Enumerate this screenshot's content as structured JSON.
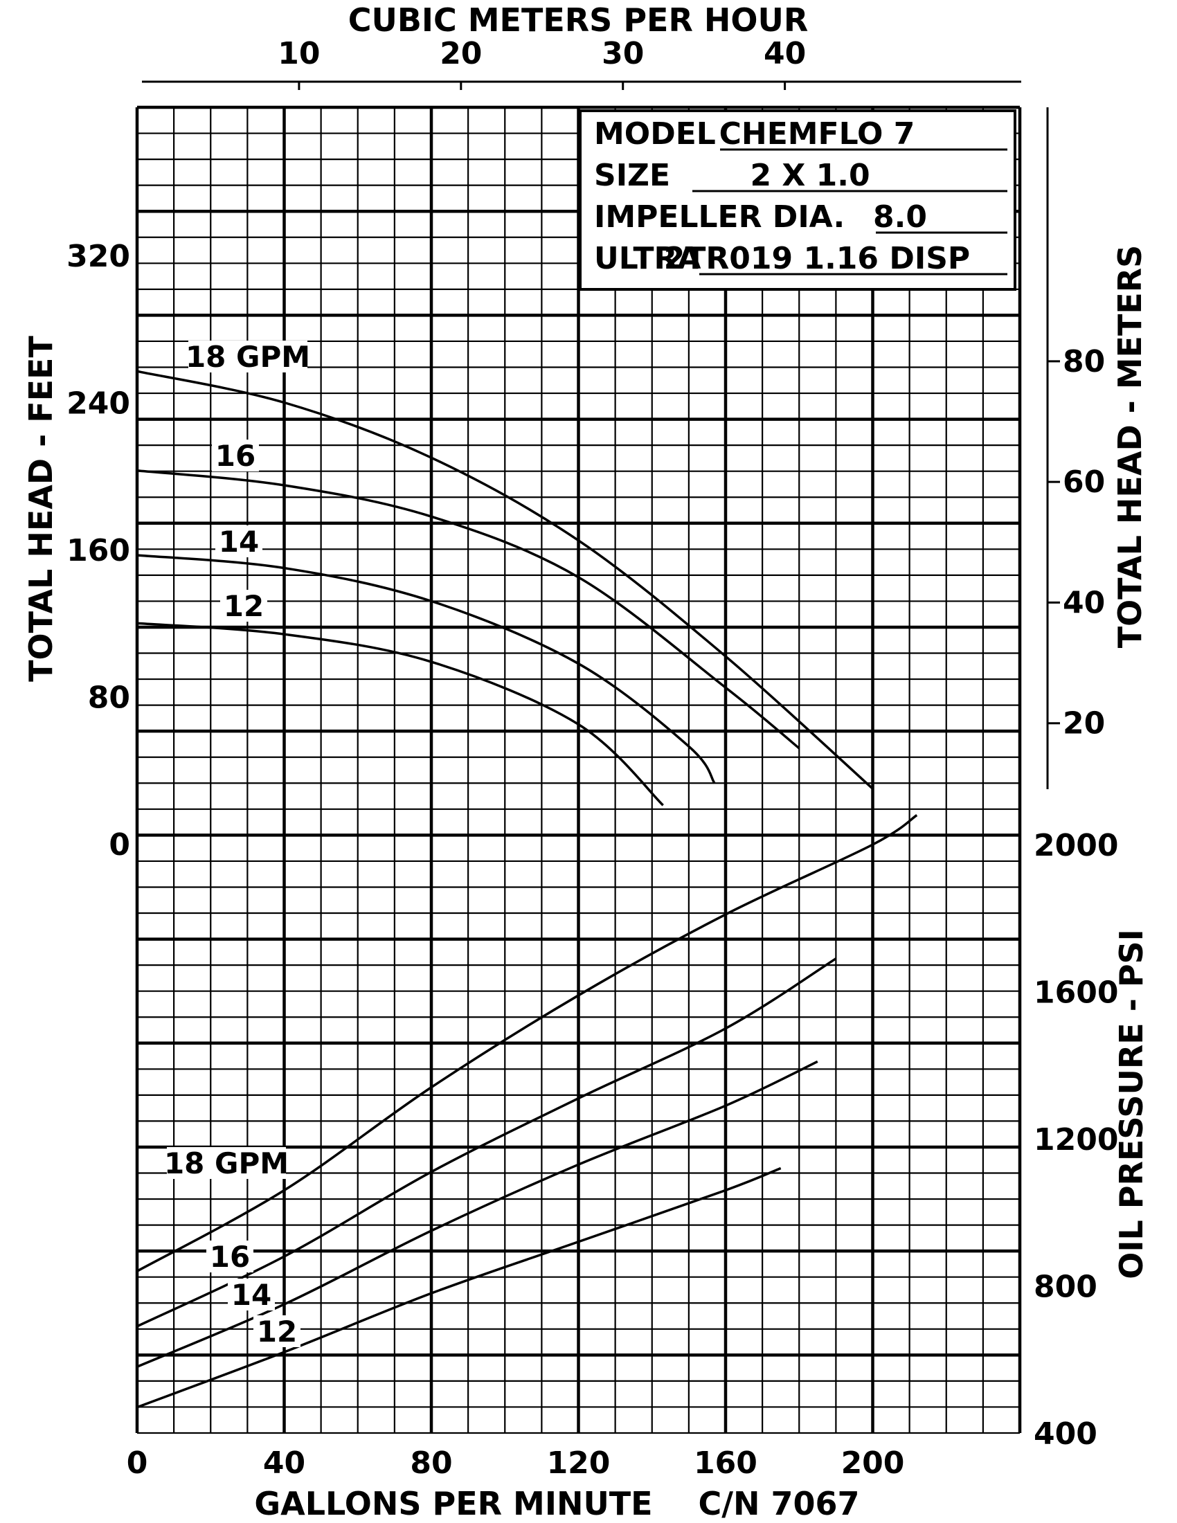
{
  "chart_data": {
    "type": "line",
    "top_axis": {
      "label": "CUBIC METERS PER HOUR",
      "ticks": [
        "10",
        "20",
        "30",
        "40"
      ],
      "values": [
        10,
        20,
        30,
        40
      ]
    },
    "x_axis": {
      "label": "GALLONS PER MINUTE",
      "ticks": [
        "0",
        "40",
        "80",
        "120",
        "160",
        "200"
      ],
      "values": [
        0,
        40,
        80,
        120,
        160,
        200
      ],
      "range": [
        0,
        240
      ]
    },
    "left_axis": {
      "label": "TOTAL HEAD - FEET",
      "ticks": [
        "0",
        "80",
        "160",
        "240",
        "320"
      ],
      "values": [
        0,
        80,
        160,
        240,
        320
      ]
    },
    "right_head_axis": {
      "label": "TOTAL HEAD - METERS",
      "ticks": [
        "20",
        "40",
        "60",
        "80"
      ],
      "values": [
        20,
        40,
        60,
        80
      ]
    },
    "right_oil_axis": {
      "label": "OIL PRESSURE - PSI",
      "ticks": [
        "400",
        "800",
        "1200",
        "1600",
        "2000"
      ],
      "values": [
        400,
        800,
        1200,
        1600,
        2000
      ],
      "range": [
        400,
        2000
      ]
    },
    "footer_code": "C/N 7067",
    "info_box": [
      {
        "key": "MODEL",
        "value": "CHEMFLO 7"
      },
      {
        "key": "SIZE",
        "value": "2 X 1.0"
      },
      {
        "key": "IMPELLER DIA.",
        "value": "8.0"
      },
      {
        "key": "ULTRA",
        "value": "2TR019 1.16 DISP"
      }
    ],
    "head_series": [
      {
        "name": "18 GPM",
        "x": [
          0,
          40,
          80,
          120,
          160,
          200
        ],
        "y": [
          257,
          240,
          210,
          165,
          102,
          30
        ]
      },
      {
        "name": "16",
        "x": [
          0,
          40,
          80,
          120,
          160,
          180
        ],
        "y": [
          203,
          195,
          178,
          145,
          85,
          52
        ]
      },
      {
        "name": "14",
        "x": [
          0,
          40,
          80,
          120,
          150,
          157
        ],
        "y": [
          157,
          150,
          132,
          98,
          53,
          33
        ]
      },
      {
        "name": "12",
        "x": [
          0,
          40,
          80,
          120,
          143
        ],
        "y": [
          120,
          114,
          99,
          65,
          21
        ]
      }
    ],
    "oil_series": [
      {
        "name": "18 GPM",
        "x": [
          0,
          40,
          80,
          120,
          160,
          200,
          212
        ],
        "y": [
          840,
          1060,
          1340,
          1590,
          1810,
          2000,
          2080
        ]
      },
      {
        "name": "16",
        "x": [
          0,
          40,
          80,
          120,
          160,
          190
        ],
        "y": [
          690,
          880,
          1110,
          1310,
          1500,
          1690
        ]
      },
      {
        "name": "14",
        "x": [
          0,
          40,
          80,
          120,
          160,
          185
        ],
        "y": [
          580,
          750,
          950,
          1130,
          1290,
          1410
        ]
      },
      {
        "name": "12",
        "x": [
          0,
          40,
          80,
          120,
          160,
          175
        ],
        "y": [
          470,
          620,
          780,
          920,
          1060,
          1120
        ]
      }
    ]
  }
}
